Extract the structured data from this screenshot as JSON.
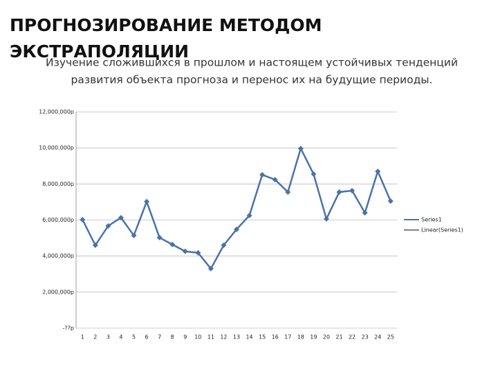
{
  "chart_data": {
    "type": "line",
    "title": [
      "ПРОГНОЗИРОВАНИЕ МЕТОДОМ",
      "ЭКСТРАПОЛЯЦИИ"
    ],
    "subtitle": [
      "Изучение сложившихся в прошлом и настоящем устойчивых тенденций",
      "развития объекта прогноза и перенос их на будущие периоды."
    ],
    "categories": [
      "1",
      "2",
      "3",
      "4",
      "5",
      "6",
      "7",
      "8",
      "9",
      "10",
      "11",
      "12",
      "13",
      "14",
      "15",
      "16",
      "17",
      "18",
      "19",
      "20",
      "21",
      "22",
      "23",
      "24",
      "25"
    ],
    "series": [
      {
        "name": "Series1",
        "color": "#4a72a8",
        "values": [
          6020000,
          4600000,
          5670000,
          6130000,
          5140000,
          7020000,
          5020000,
          4640000,
          4260000,
          4180000,
          3300000,
          4600000,
          5480000,
          6250000,
          8510000,
          8240000,
          7550000,
          9970000,
          8550000,
          6060000,
          7550000,
          7630000,
          6400000,
          8700000,
          7050000
        ]
      }
    ],
    "trendline": {
      "name": "Linear(Series1)",
      "color": "#000000"
    },
    "ylim": [
      0,
      12000000
    ],
    "yticks": [
      {
        "value": 0,
        "label": "-??р"
      },
      {
        "value": 2000000,
        "label": "2,000,000р"
      },
      {
        "value": 4000000,
        "label": "4,000,000р"
      },
      {
        "value": 6000000,
        "label": "6,000,000р"
      },
      {
        "value": 8000000,
        "label": "8,000,000р"
      },
      {
        "value": 10000000,
        "label": "10,000,000р"
      },
      {
        "value": 12000000,
        "label": "12,000,000р"
      }
    ],
    "grid": true,
    "legend": "right"
  }
}
